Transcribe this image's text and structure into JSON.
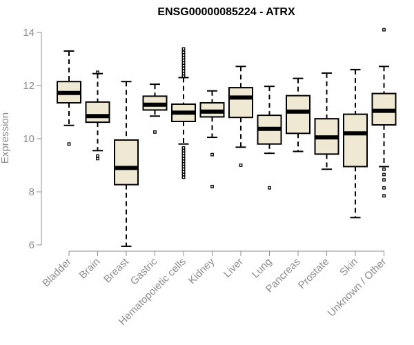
{
  "chart_data": {
    "type": "box",
    "title": "ENSG00000085224 - ATRX",
    "ylabel": "Expression",
    "xlabel": "",
    "ylim": [
      6,
      14
    ],
    "yticks": [
      6,
      8,
      10,
      12,
      14
    ],
    "colors": {
      "box_fill": "#efe8d2",
      "stroke": "#000000",
      "axis": "#8c8c8c"
    },
    "categories": [
      "Bladder",
      "Brain",
      "Breast",
      "Gastric",
      "Hematopoietic cells",
      "Kidney",
      "Liver",
      "Lung",
      "Pancreas",
      "Prostate",
      "Skin",
      "Unknown / Other"
    ],
    "boxes": [
      {
        "whisker_low": 10.5,
        "q1": 11.35,
        "median": 11.72,
        "q3": 12.15,
        "whisker_high": 13.3,
        "outliers": [
          9.8
        ]
      },
      {
        "whisker_low": 9.55,
        "q1": 10.62,
        "median": 10.85,
        "q3": 11.38,
        "whisker_high": 12.45,
        "outliers": [
          9.25,
          9.35,
          12.5
        ]
      },
      {
        "whisker_low": 5.95,
        "q1": 8.27,
        "median": 8.9,
        "q3": 9.95,
        "whisker_high": 12.15,
        "outliers": []
      },
      {
        "whisker_low": 10.85,
        "q1": 11.08,
        "median": 11.28,
        "q3": 11.6,
        "whisker_high": 12.05,
        "outliers": [
          10.25
        ]
      },
      {
        "whisker_low": 9.8,
        "q1": 10.65,
        "median": 10.98,
        "q3": 11.3,
        "whisker_high": 12.3,
        "outliers": [
          8.55,
          8.65,
          8.75,
          8.85,
          8.95,
          9.05,
          9.15,
          9.25,
          9.35,
          9.45,
          9.55,
          9.65,
          12.35,
          12.45,
          12.55,
          12.65,
          12.75,
          12.85,
          12.95,
          13.05,
          13.15,
          13.25,
          13.38
        ]
      },
      {
        "whisker_low": 10.05,
        "q1": 10.82,
        "median": 11.02,
        "q3": 11.35,
        "whisker_high": 11.8,
        "outliers": [
          8.2,
          9.4
        ]
      },
      {
        "whisker_low": 9.68,
        "q1": 10.8,
        "median": 11.55,
        "q3": 11.92,
        "whisker_high": 12.72,
        "outliers": [
          9.0
        ]
      },
      {
        "whisker_low": 9.45,
        "q1": 9.8,
        "median": 10.37,
        "q3": 10.88,
        "whisker_high": 11.97,
        "outliers": [
          8.15
        ]
      },
      {
        "whisker_low": 9.52,
        "q1": 10.2,
        "median": 11.02,
        "q3": 11.62,
        "whisker_high": 12.27,
        "outliers": []
      },
      {
        "whisker_low": 8.85,
        "q1": 9.42,
        "median": 10.05,
        "q3": 10.75,
        "whisker_high": 12.47,
        "outliers": []
      },
      {
        "whisker_low": 7.03,
        "q1": 8.95,
        "median": 10.2,
        "q3": 10.92,
        "whisker_high": 12.6,
        "outliers": []
      },
      {
        "whisker_low": 8.95,
        "q1": 10.52,
        "median": 11.05,
        "q3": 11.7,
        "whisker_high": 12.72,
        "outliers": [
          7.85,
          8.15,
          8.45,
          8.65,
          8.85,
          14.1
        ]
      }
    ]
  }
}
